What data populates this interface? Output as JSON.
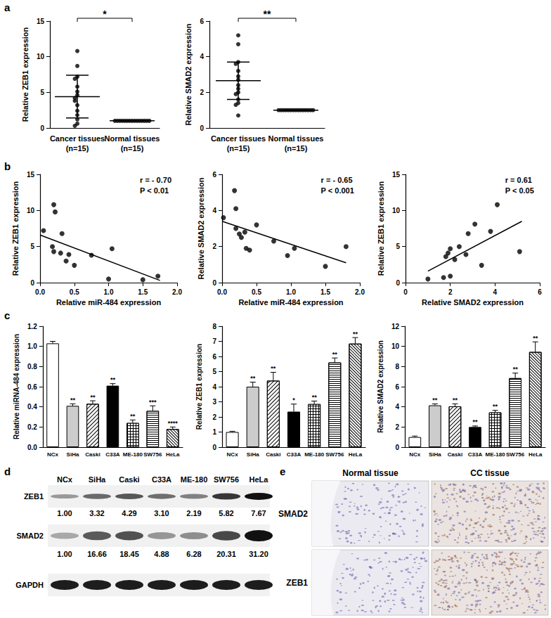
{
  "panel_labels": [
    "a",
    "b",
    "c",
    "d",
    "e"
  ],
  "chart_data": [
    {
      "type": "dot",
      "ylabel": "Relative ZEB1 expression",
      "categories": [
        "Cancer tissues",
        "Normal tissues"
      ],
      "n_labels": [
        "(n=15)",
        "(n=15)"
      ],
      "values": [
        [
          10.8,
          8.7,
          7.2,
          6.9,
          5.8,
          5.1,
          4.6,
          4.2,
          3.8,
          3.2,
          2.4,
          1.8,
          1.2,
          0.6,
          0.3
        ],
        [
          1,
          1,
          1,
          1,
          1,
          1,
          1,
          1,
          1,
          1,
          1,
          1,
          1,
          1,
          1
        ]
      ],
      "mean": [
        4.4,
        1.0
      ],
      "sd": [
        3.0,
        0.0
      ],
      "significance": "*",
      "color": "#000000",
      "ylim": [
        0,
        15
      ],
      "yticks": [
        0,
        5,
        10,
        15
      ]
    },
    {
      "type": "dot",
      "ylabel": "Relative SMAD2 expression",
      "categories": [
        "Cancer tissues",
        "Normal tissues"
      ],
      "n_labels": [
        "(n=15)",
        "(n=15)"
      ],
      "values": [
        [
          5.2,
          4.7,
          3.7,
          3.6,
          3.2,
          2.9,
          2.7,
          2.4,
          2.2,
          2.0,
          1.9,
          1.6,
          1.4,
          1.3,
          0.7
        ],
        [
          1,
          1,
          1,
          1,
          1,
          1,
          1,
          1,
          1,
          1,
          1,
          1,
          1,
          1,
          1
        ]
      ],
      "mean": [
        2.65,
        1.0
      ],
      "sd": [
        1.05,
        0.0
      ],
      "significance": "**",
      "color": "#000000",
      "ylim": [
        0,
        6
      ],
      "yticks": [
        0,
        2,
        4,
        6
      ]
    },
    {
      "type": "scatter",
      "xlabel": "Relative miR-484 expression",
      "ylabel": "Relative ZEB1 expression",
      "x": [
        0.05,
        0.2,
        0.22,
        0.18,
        0.2,
        0.3,
        0.32,
        0.38,
        0.42,
        0.5,
        0.75,
        1.0,
        1.05,
        1.5,
        1.72
      ],
      "y": [
        7.2,
        10.8,
        9.8,
        5.0,
        4.3,
        4.1,
        6.8,
        3.0,
        3.9,
        2.4,
        3.8,
        0.5,
        4.7,
        0.4,
        0.9
      ],
      "fit_line": {
        "x": [
          0,
          1.75
        ],
        "y": [
          6.6,
          0.3
        ]
      },
      "annotations": [
        "r = - 0.70",
        "P < 0.01"
      ],
      "color": "#000000",
      "xlim": [
        0,
        2
      ],
      "xticks": [
        {
          "value": 0,
          "label": "0.0"
        },
        {
          "value": 0.5,
          "label": "0.5"
        },
        {
          "value": 1,
          "label": "1.0"
        },
        {
          "value": 1.5,
          "label": "1.5"
        },
        {
          "value": 2,
          "label": "2.0"
        }
      ],
      "ylim": [
        0,
        15
      ],
      "yticks": [
        0,
        5,
        10,
        15
      ]
    },
    {
      "type": "scatter",
      "xlabel": "Relative miR-484 expression",
      "ylabel": "Relative SMAD2 expression",
      "x": [
        0.02,
        0.18,
        0.2,
        0.2,
        0.25,
        0.33,
        0.35,
        0.4,
        0.5,
        0.75,
        0.95,
        1.05,
        1.5,
        1.8,
        0.28
      ],
      "y": [
        3.6,
        5.1,
        4.1,
        3.0,
        2.7,
        2.8,
        1.9,
        1.8,
        3.2,
        2.3,
        1.5,
        1.9,
        0.9,
        2.0,
        2.5
      ],
      "fit_line": {
        "x": [
          0,
          1.8
        ],
        "y": [
          3.4,
          1.1
        ]
      },
      "annotations": [
        "r = - 0.65",
        "P < 0.001"
      ],
      "color": "#000000",
      "xlim": [
        0,
        2
      ],
      "xticks": [
        {
          "value": 0,
          "label": "0.0"
        },
        {
          "value": 0.5,
          "label": "0.5"
        },
        {
          "value": 1,
          "label": "1.0"
        },
        {
          "value": 1.5,
          "label": "1.5"
        },
        {
          "value": 2,
          "label": "2.0"
        }
      ],
      "ylim": [
        0,
        6
      ],
      "yticks": [
        0,
        2,
        4,
        6
      ]
    },
    {
      "type": "scatter",
      "xlabel": "Relative SMAD2 expression",
      "ylabel": "Relative ZEB1 expression",
      "x": [
        1.0,
        1.7,
        1.8,
        1.9,
        2.0,
        2.0,
        2.2,
        2.4,
        2.7,
        2.8,
        3.1,
        3.4,
        3.8,
        4.1,
        5.1
      ],
      "y": [
        0.5,
        0.7,
        3.6,
        4.1,
        4.7,
        0.9,
        3.2,
        5.0,
        3.9,
        6.8,
        8.1,
        2.4,
        7.1,
        10.8,
        4.3
      ],
      "fit_line": {
        "x": [
          1.0,
          5.2
        ],
        "y": [
          1.6,
          8.5
        ]
      },
      "annotations": [
        "r = 0.61",
        "P < 0.05"
      ],
      "color": "#000000",
      "xlim": [
        0,
        6
      ],
      "xticks": [
        0,
        2,
        4,
        6
      ],
      "ylim": [
        0,
        15
      ],
      "yticks": [
        0,
        5,
        10,
        15
      ]
    },
    {
      "type": "bar",
      "ylabel": "Relative miRNA-484 expression",
      "categories": [
        "NCx",
        "SiHa",
        "Caski",
        "C33A",
        "ME-180",
        "SW756",
        "HeLa"
      ],
      "values": [
        1.03,
        0.41,
        0.43,
        0.61,
        0.24,
        0.36,
        0.18
      ],
      "errors": [
        0.02,
        0.02,
        0.03,
        0.02,
        0.03,
        0.05,
        0.02
      ],
      "significance": [
        null,
        "**",
        "**",
        "**",
        "**",
        "***",
        "****"
      ],
      "colors": [
        "#ffffff",
        "#cccccc",
        "#ffffff",
        "#000000",
        "#000000",
        "#ffffff",
        "#ffffff"
      ],
      "ylim": [
        0,
        1.2
      ],
      "yticks": [
        {
          "value": 0,
          "label": "0.0"
        },
        {
          "value": 0.2,
          "label": "0.2"
        },
        {
          "value": 0.4,
          "label": "0.4"
        },
        {
          "value": 0.6,
          "label": "0.6"
        },
        {
          "value": 0.8,
          "label": "0.8"
        },
        {
          "value": 1,
          "label": "1.0"
        },
        {
          "value": 1.2,
          "label": "1.2"
        }
      ]
    },
    {
      "type": "bar",
      "ylabel": "Relative ZEB1 expression",
      "categories": [
        "NCx",
        "SiHa",
        "Caski",
        "C33A",
        "ME-180",
        "SW756",
        "HeLa"
      ],
      "values": [
        1.0,
        4.0,
        4.4,
        2.35,
        2.85,
        5.6,
        6.85
      ],
      "errors": [
        0.05,
        0.3,
        0.55,
        0.5,
        0.2,
        0.3,
        0.4
      ],
      "significance": [
        null,
        "**",
        "**",
        "*",
        "**",
        "**",
        "**"
      ],
      "colors": [
        "#ffffff",
        "#cccccc",
        "#ffffff",
        "#000000",
        "#000000",
        "#ffffff",
        "#ffffff"
      ],
      "ylim": [
        0,
        8
      ],
      "yticks": [
        0,
        1,
        2,
        3,
        4,
        5,
        6,
        7,
        8
      ]
    },
    {
      "type": "bar",
      "ylabel": "Relative SMAD2 expression",
      "categories": [
        "NCx",
        "SiHa",
        "Caski",
        "C33A",
        "ME-180",
        "SW756",
        "HeLa"
      ],
      "values": [
        1.0,
        4.15,
        4.05,
        2.0,
        3.45,
        6.85,
        9.45
      ],
      "errors": [
        0.1,
        0.15,
        0.25,
        0.1,
        0.2,
        0.5,
        1.0
      ],
      "significance": [
        null,
        "**",
        "**",
        "**",
        "**",
        "**",
        "**"
      ],
      "colors": [
        "#ffffff",
        "#cccccc",
        "#ffffff",
        "#000000",
        "#000000",
        "#ffffff",
        "#ffffff"
      ],
      "ylim": [
        0,
        12
      ],
      "yticks": [
        0,
        2,
        4,
        6,
        8,
        10,
        12
      ]
    }
  ],
  "blot": {
    "lanes": [
      "NCx",
      "SiHa",
      "Caski",
      "C33A",
      "ME-180",
      "SW756",
      "HeLa"
    ],
    "rows": [
      {
        "name": "ZEB1",
        "values": [
          "1.00",
          "3.32",
          "4.29",
          "3.10",
          "2.19",
          "5.82",
          "7.67"
        ]
      },
      {
        "name": "SMAD2",
        "values": [
          "1.00",
          "16.66",
          "18.45",
          "4.88",
          "6.28",
          "20.31",
          "31.20"
        ]
      },
      {
        "name": "GAPDH"
      }
    ]
  },
  "ihc": {
    "columns": [
      "Normal tissue",
      "CC  tissue"
    ],
    "rows": [
      "SMAD2",
      "ZEB1"
    ]
  }
}
